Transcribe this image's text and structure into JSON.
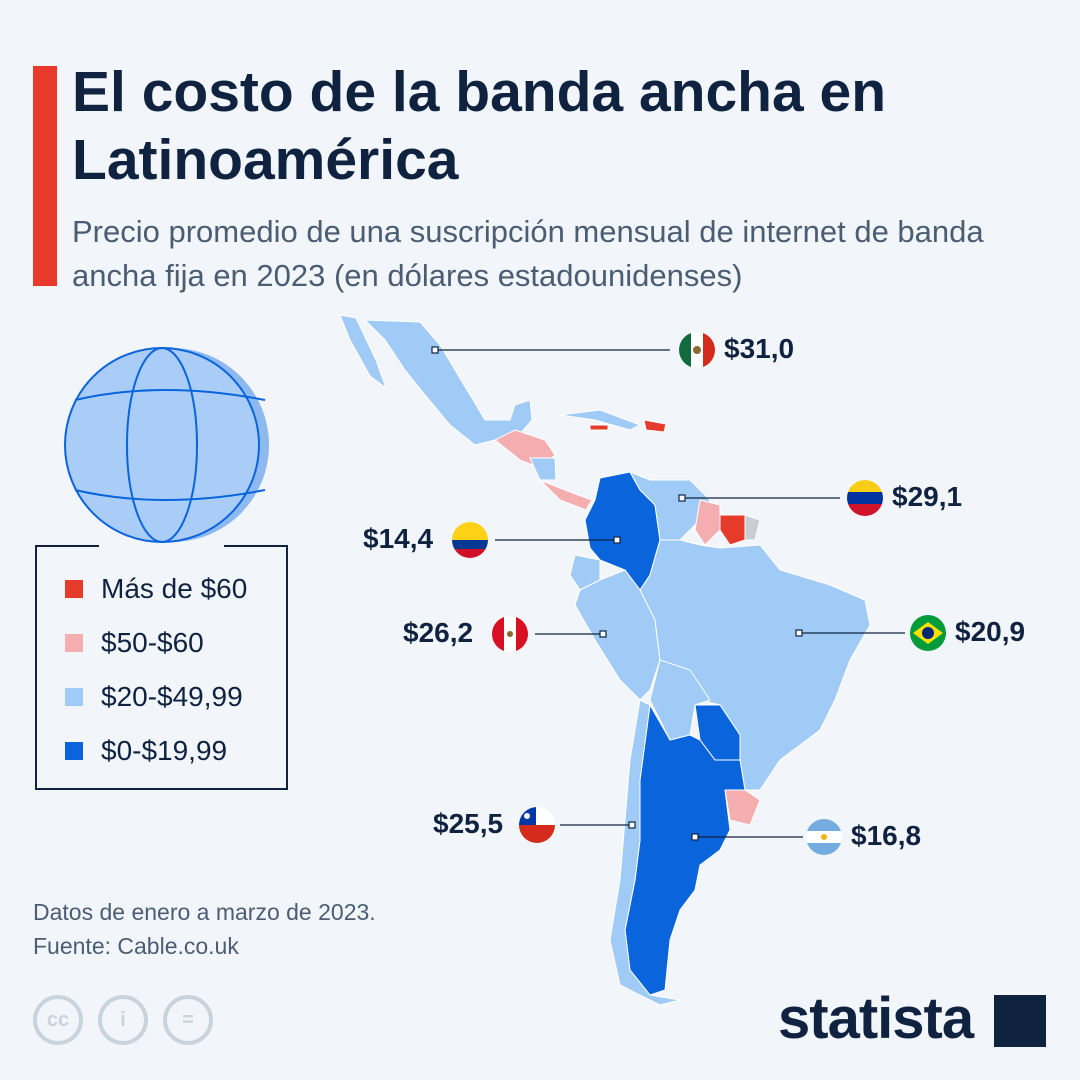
{
  "title": "El costo de la banda ancha en Latinoamérica",
  "subtitle": "Precio promedio de una suscripción mensual de internet de banda ancha fija en 2023 (en dólares estadounidenses)",
  "legend": [
    {
      "label": "Más de $60",
      "color": "#e63a2b"
    },
    {
      "label": "$50-$60",
      "color": "#f5aeb0"
    },
    {
      "label": "$20-$49,99",
      "color": "#9fcbf6"
    },
    {
      "label": "$0-$19,99",
      "color": "#0a64dc"
    }
  ],
  "countries": [
    {
      "name": "México",
      "price": "$31,0",
      "category": "$20-$49,99"
    },
    {
      "name": "Venezuela",
      "price": "$29,1",
      "category": "$20-$49,99"
    },
    {
      "name": "Colombia",
      "price": "$14,4",
      "category": "$0-$19,99"
    },
    {
      "name": "Perú",
      "price": "$26,2",
      "category": "$20-$49,99"
    },
    {
      "name": "Brasil",
      "price": "$20,9",
      "category": "$20-$49,99"
    },
    {
      "name": "Chile",
      "price": "$25,5",
      "category": "$20-$49,99"
    },
    {
      "name": "Argentina",
      "price": "$16,8",
      "category": "$0-$19,99"
    }
  ],
  "note": "Datos de enero a marzo de 2023.",
  "source": "Fuente: Cable.co.uk",
  "license_icons": [
    "cc-icon",
    "attribution-icon",
    "no-derivatives-icon"
  ],
  "brand": "statista",
  "colors": {
    "accent": "#e8392a",
    "title": "#0f2341"
  }
}
